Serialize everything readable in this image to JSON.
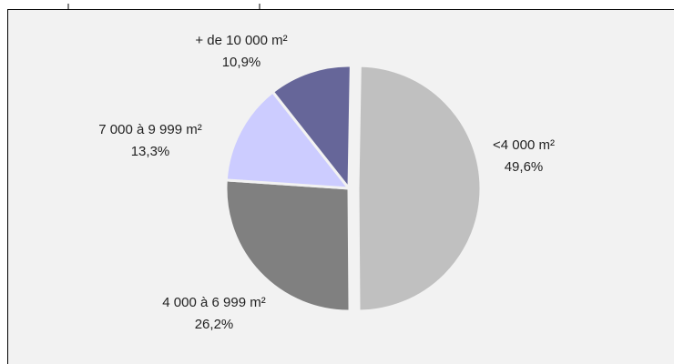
{
  "chart_data": {
    "type": "pie",
    "categories": [
      "<4 000 m²",
      "4 000 à 6 999 m²",
      "7 000 à 9 999 m²",
      "+ de 10 000 m²"
    ],
    "values": [
      49.6,
      26.2,
      13.3,
      10.9
    ],
    "value_labels": [
      "49,6%",
      "26,2%",
      "13,3%",
      "10,9%"
    ],
    "colors": [
      "#c0c0c0",
      "#808080",
      "#ccccff",
      "#666699"
    ]
  }
}
